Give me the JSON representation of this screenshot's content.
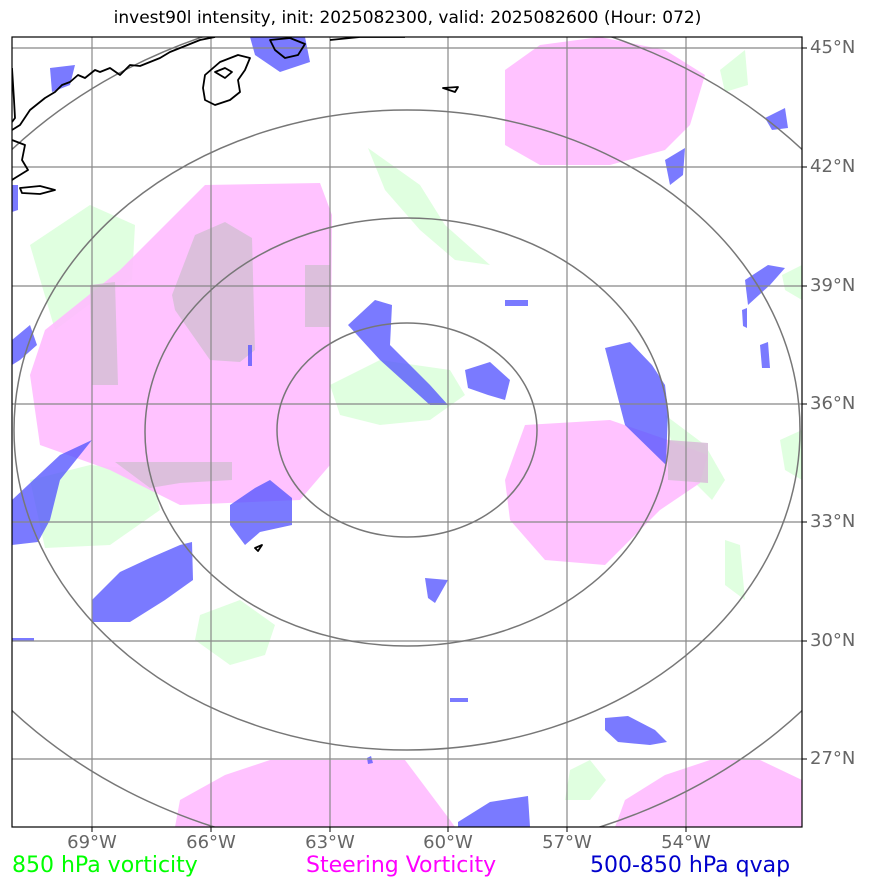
{
  "title": "invest90l intensity, init: 2025082300, valid: 2025082600 (Hour: 072)",
  "lat_labels": [
    "45°N",
    "42°N",
    "39°N",
    "36°N",
    "33°N",
    "30°N",
    "27°N"
  ],
  "lon_labels": [
    "69°W",
    "66°W",
    "63°W",
    "60°W",
    "57°W",
    "54°W"
  ],
  "legend": {
    "vort850": "850 hPa vorticity",
    "steering": "Steering Vorticity",
    "qvap": "500-850 hPa qvap"
  },
  "colors": {
    "vort850": "#00ff00",
    "steering": "#ff00ff",
    "qvap": "#0000cc",
    "grid": "#888888",
    "ring": "#777777",
    "coast": "#000000"
  }
}
